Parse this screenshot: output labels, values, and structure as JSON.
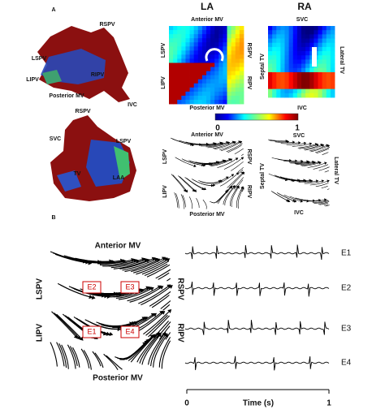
{
  "panel_a": {
    "label": "A",
    "la_anatomy": {
      "labels": [
        "RSPV",
        "LSPV",
        "RIPV",
        "LIPV",
        "Posterior MV",
        "IVC"
      ]
    },
    "ra_anatomy": {
      "labels": [
        "RSPV",
        "SVC",
        "LSPV",
        "TV",
        "LAA"
      ]
    },
    "la_map": {
      "title": "LA",
      "top": "Anterior MV",
      "left_upper": "LSPV",
      "right_upper": "RSPV",
      "left_lower": "LIPV",
      "right_lower": "RIPV",
      "bottom": "Posterior MV"
    },
    "ra_map": {
      "title": "RA",
      "top": "SVC",
      "left": "Septal TV",
      "right": "Lateral TV",
      "bottom": "IVC"
    },
    "colorbar": {
      "ticks": [
        0,
        1
      ]
    },
    "la_flow": {
      "top": "Anterior MV",
      "left_upper": "LSPV",
      "right_upper": "RSPV",
      "left_lower": "LIPV",
      "right_lower": "RIPV",
      "bottom": "Posterior MV"
    },
    "ra_flow": {
      "top": "SVC",
      "left": "Septal TV",
      "right": "Lateral TV",
      "bottom": "IVC"
    }
  },
  "panel_b": {
    "label": "B",
    "flow_map": {
      "top": "Anterior MV",
      "left_upper": "LSPV",
      "right_upper": "RSPV",
      "left_lower": "LIPV",
      "right_lower": "RIPV",
      "bottom": "Posterior MV",
      "electrodes": [
        "E1",
        "E2",
        "E3",
        "E4"
      ]
    },
    "traces": {
      "names": [
        "E1",
        "E2",
        "E3",
        "E4"
      ],
      "x_label": "Time (s)",
      "x_ticks": [
        0,
        1
      ]
    }
  }
}
